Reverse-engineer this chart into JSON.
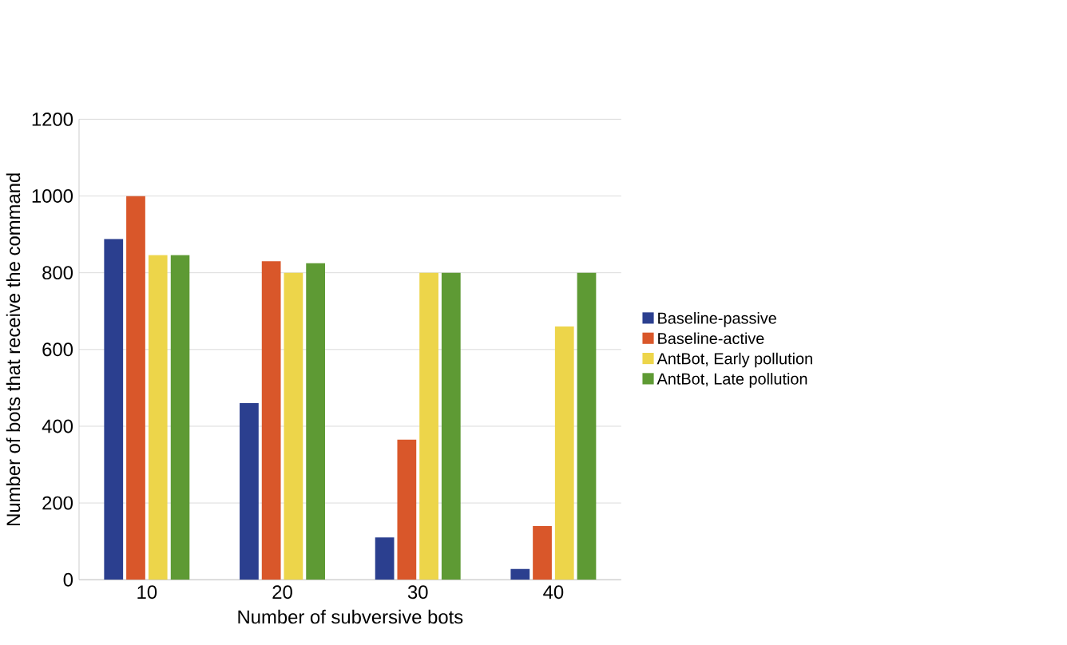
{
  "chart_data": {
    "type": "bar",
    "xlabel": "Number of subversive bots",
    "ylabel": "Number of bots that receive the command",
    "categories": [
      "10",
      "20",
      "30",
      "40"
    ],
    "series": [
      {
        "name": "Baseline-passive",
        "color": "#2b3f8f",
        "values": [
          888,
          460,
          110,
          28
        ]
      },
      {
        "name": "Baseline-active",
        "color": "#d9572a",
        "values": [
          1000,
          830,
          365,
          140
        ]
      },
      {
        "name": "AntBot, Early pollution",
        "color": "#edd54a",
        "values": [
          846,
          800,
          800,
          660
        ]
      },
      {
        "name": "AntBot, Late pollution",
        "color": "#5e9a34",
        "values": [
          846,
          825,
          800,
          800
        ]
      }
    ],
    "ylim": [
      0,
      1200
    ],
    "yticks": [
      0,
      200,
      400,
      600,
      800,
      1000,
      1200
    ],
    "grid": "y",
    "legend": "right"
  }
}
